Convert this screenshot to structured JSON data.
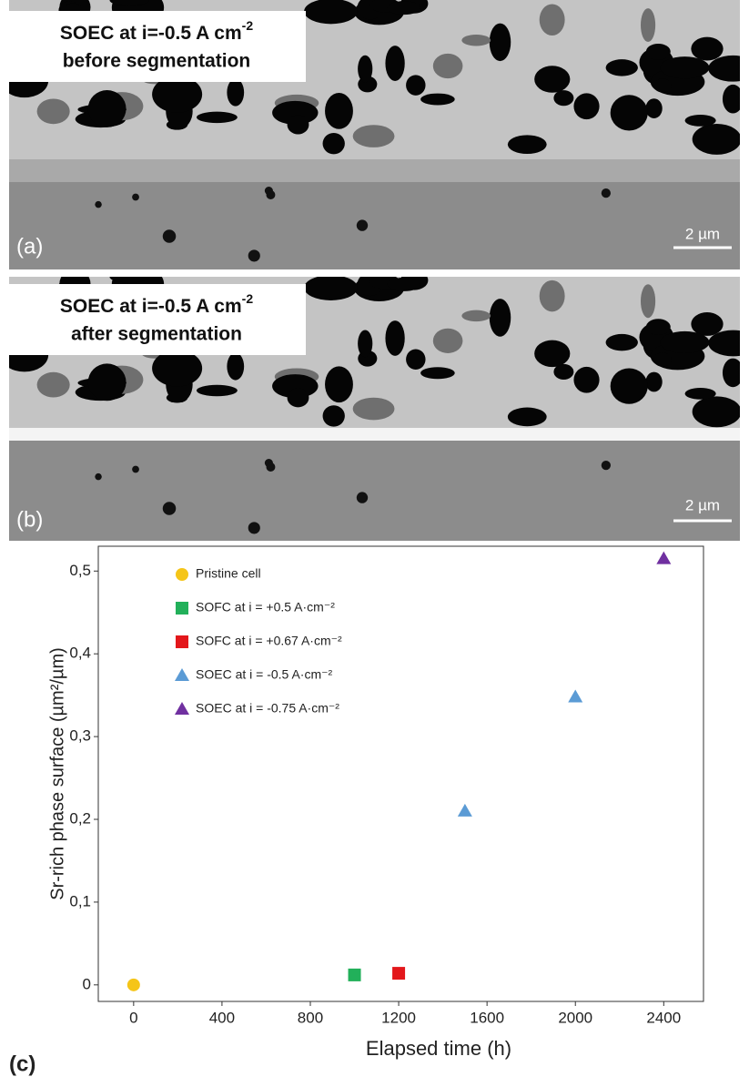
{
  "panels": [
    {
      "label": "(a)",
      "title": "SOEC at i=-0.5 A cm",
      "title_sup": "-2",
      "subtitle": "before segmentation",
      "scale": "2 µm"
    },
    {
      "label": "(b)",
      "title": "SOEC at i=-0.5 A cm",
      "title_sup": "-2",
      "subtitle": "after segmentation",
      "scale": "2 µm"
    }
  ],
  "chart_data": {
    "type": "scatter",
    "label": "(c)",
    "x_label": "Elapsed time (h)",
    "y_label": "Sr-rich phase surface (µm²/µm)",
    "xlim": [
      -160,
      2580
    ],
    "ylim": [
      -0.02,
      0.53
    ],
    "xticks": [
      0,
      400,
      800,
      1200,
      1600,
      2000,
      2400
    ],
    "yticks": [
      0,
      {
        "value": 0.1,
        "label": "0,1"
      },
      {
        "value": 0.2,
        "label": "0,2"
      },
      {
        "value": 0.3,
        "label": "0,3"
      },
      {
        "value": 0.4,
        "label": "0,4"
      },
      {
        "value": 0.5,
        "label": "0,5"
      }
    ],
    "series": [
      {
        "name": "Pristine cell",
        "color": "#f5c518",
        "marker": "circle",
        "x": [
          0
        ],
        "y": [
          0
        ]
      },
      {
        "name": "SOFC at i = +0.5 A·cm⁻²",
        "color": "#22b05a",
        "marker": "square",
        "x": [
          1000
        ],
        "y": [
          0.012
        ]
      },
      {
        "name": "SOFC at i = +0.67 A·cm⁻²",
        "color": "#e3171b",
        "marker": "square",
        "x": [
          1200
        ],
        "y": [
          0.014
        ]
      },
      {
        "name": "SOEC at i = -0.5 A·cm⁻²",
        "color": "#5b9bd5",
        "marker": "triangle",
        "x": [
          1500,
          2000
        ],
        "y": [
          0.21,
          0.348
        ]
      },
      {
        "name": "SOEC at i = -0.75 A·cm⁻²",
        "color": "#7030a0",
        "marker": "triangle",
        "x": [
          2400
        ],
        "y": [
          0.515
        ]
      }
    ]
  }
}
